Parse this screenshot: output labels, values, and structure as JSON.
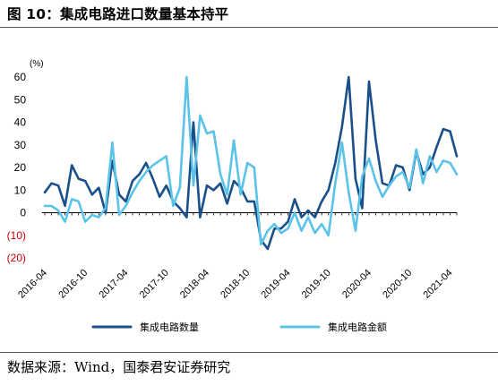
{
  "figure": {
    "title": "图 10：集成电路进口数量基本持平",
    "source": "数据来源：Wind，国泰君安证券研究"
  },
  "chart_data": {
    "type": "line",
    "unit_label": "(%)",
    "ylim": [
      -20,
      60
    ],
    "yticks": [
      {
        "value": 60,
        "label": "60"
      },
      {
        "value": 50,
        "label": "50"
      },
      {
        "value": 40,
        "label": "40"
      },
      {
        "value": 30,
        "label": "30"
      },
      {
        "value": 20,
        "label": "20"
      },
      {
        "value": 10,
        "label": "10"
      },
      {
        "value": 0,
        "label": "0"
      },
      {
        "value": -10,
        "label": "(10)"
      },
      {
        "value": -20,
        "label": "(20)"
      }
    ],
    "xtick_labels": [
      "2016-04",
      "2016-10",
      "2017-04",
      "2017-10",
      "2018-04",
      "2018-10",
      "2019-04",
      "2019-10",
      "2020-04",
      "2020-10",
      "2021-04"
    ],
    "x": [
      "2016-04",
      "2016-05",
      "2016-06",
      "2016-07",
      "2016-08",
      "2016-09",
      "2016-10",
      "2016-11",
      "2016-12",
      "2017-01",
      "2017-02",
      "2017-03",
      "2017-04",
      "2017-05",
      "2017-06",
      "2017-07",
      "2017-08",
      "2017-09",
      "2017-10",
      "2017-11",
      "2017-12",
      "2018-01",
      "2018-02",
      "2018-03",
      "2018-04",
      "2018-05",
      "2018-06",
      "2018-07",
      "2018-08",
      "2018-09",
      "2018-10",
      "2018-11",
      "2018-12",
      "2019-01",
      "2019-02",
      "2019-03",
      "2019-04",
      "2019-05",
      "2019-06",
      "2019-07",
      "2019-08",
      "2019-09",
      "2019-10",
      "2019-11",
      "2019-12",
      "2020-01",
      "2020-02",
      "2020-03",
      "2020-04",
      "2020-05",
      "2020-06",
      "2020-07",
      "2020-08",
      "2020-09",
      "2020-10",
      "2020-11",
      "2020-12",
      "2021-01",
      "2021-02",
      "2021-03",
      "2021-04",
      "2021-05"
    ],
    "legend_position": "bottom",
    "grid": false,
    "series": [
      {
        "name": "集成电路数量",
        "color": "#1a4f8a",
        "values": [
          9,
          13,
          12,
          3,
          21,
          15,
          14,
          8,
          11,
          0,
          23,
          8,
          5,
          14,
          17,
          22,
          15,
          7,
          12,
          5,
          2,
          -2,
          40,
          -2,
          12,
          10,
          13,
          4,
          14,
          11,
          5,
          5,
          -12,
          -16,
          -7,
          -7,
          -4,
          6,
          -2,
          1,
          -2,
          5,
          10,
          22,
          38,
          60,
          15,
          2,
          58,
          32,
          13,
          12,
          21,
          20,
          10,
          27,
          17,
          20,
          29,
          37,
          36,
          25
        ]
      },
      {
        "name": "集成电路金额",
        "color": "#5bc3e8",
        "values": [
          3,
          3,
          1,
          -4,
          6,
          5,
          -4,
          -1,
          -2,
          2,
          31,
          -1,
          3,
          9,
          14,
          18,
          21,
          23,
          25,
          3,
          11,
          60,
          12,
          43,
          35,
          36,
          17,
          8,
          32,
          8,
          22,
          20,
          -14,
          -8,
          -5,
          -9,
          -7,
          0,
          -8,
          -2,
          -9,
          -5,
          -10,
          13,
          31,
          9,
          -8,
          16,
          24,
          14,
          7,
          12,
          16,
          18,
          11,
          28,
          13,
          25,
          18,
          23,
          22,
          17
        ]
      }
    ]
  }
}
